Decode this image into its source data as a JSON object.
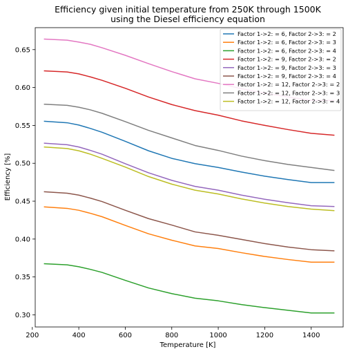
{
  "chart_data": {
    "type": "line",
    "title": "Efficiency given initial temperature from 250K through 1500K",
    "subtitle": "using the Diesel efficiency equation",
    "xlabel": "Temperature [K]",
    "ylabel": "Efficiency [%]",
    "xlim": [
      212.5,
      1537.5
    ],
    "ylim": [
      0.284,
      0.679
    ],
    "xticks": [
      200,
      400,
      600,
      800,
      1000,
      1200,
      1400
    ],
    "xtick_labels": [
      "200",
      "400",
      "600",
      "800",
      "1000",
      "1200",
      "1400"
    ],
    "yticks": [
      0.3,
      0.35,
      0.4,
      0.45,
      0.5,
      0.55,
      0.6,
      0.65
    ],
    "ytick_labels": [
      "0.30",
      "0.35",
      "0.40",
      "0.45",
      "0.50",
      "0.55",
      "0.60",
      "0.65"
    ],
    "grid": false,
    "legend_position": "top-right",
    "x": [
      250,
      350,
      400,
      450,
      500,
      600,
      700,
      800,
      900,
      1000,
      1100,
      1200,
      1300,
      1400,
      1500
    ],
    "series": [
      {
        "name": "Factor 1->2: = 6, Factor 2->3: = 2",
        "color": "#1f77b4",
        "values": [
          0.5555,
          0.5535,
          0.5505,
          0.546,
          0.541,
          0.529,
          0.5165,
          0.5065,
          0.4995,
          0.4945,
          0.4885,
          0.483,
          0.4785,
          0.4745,
          0.4745
        ]
      },
      {
        "name": "Factor 1->2: = 6, Factor 2->3: = 3",
        "color": "#ff7f0e",
        "values": [
          0.4425,
          0.4405,
          0.438,
          0.434,
          0.4295,
          0.418,
          0.407,
          0.3985,
          0.391,
          0.3875,
          0.382,
          0.377,
          0.373,
          0.3695,
          0.3695
        ]
      },
      {
        "name": "Factor 1->2: = 6, Factor 2->3: = 4",
        "color": "#2ca02c",
        "values": [
          0.3675,
          0.366,
          0.3635,
          0.36,
          0.356,
          0.3455,
          0.3355,
          0.328,
          0.322,
          0.3185,
          0.3135,
          0.3095,
          0.306,
          0.3025,
          0.3025
        ]
      },
      {
        "name": "Factor 1->2: = 9, Factor 2->3: = 2",
        "color": "#d62728",
        "values": [
          0.622,
          0.6205,
          0.618,
          0.614,
          0.6095,
          0.599,
          0.5875,
          0.5775,
          0.5695,
          0.5635,
          0.556,
          0.55,
          0.5445,
          0.5395,
          0.537
        ]
      },
      {
        "name": "Factor 1->2: = 9, Factor 2->3: = 3",
        "color": "#9467bd",
        "values": [
          0.5265,
          0.5245,
          0.5215,
          0.517,
          0.512,
          0.4995,
          0.4875,
          0.4775,
          0.4695,
          0.4645,
          0.458,
          0.4525,
          0.448,
          0.444,
          0.443
        ]
      },
      {
        "name": "Factor 1->2: = 9, Factor 2->3: = 4",
        "color": "#8c564b",
        "values": [
          0.4625,
          0.4605,
          0.458,
          0.454,
          0.4495,
          0.438,
          0.427,
          0.4185,
          0.4095,
          0.405,
          0.3995,
          0.394,
          0.3895,
          0.386,
          0.3845
        ]
      },
      {
        "name": "Factor 1->2: = 12, Factor 2->3: = 2",
        "color": "#e377c2",
        "values": [
          0.664,
          0.6625,
          0.66,
          0.657,
          0.6525,
          0.6425,
          0.6315,
          0.621,
          0.6115,
          0.6055,
          0.5985,
          0.5925,
          0.5875,
          0.583,
          0.583
        ]
      },
      {
        "name": "Factor 1->2: = 12, Factor 2->3: = 3",
        "color": "#7f7f7f",
        "values": [
          0.578,
          0.5765,
          0.574,
          0.5705,
          0.566,
          0.555,
          0.5435,
          0.5335,
          0.5235,
          0.517,
          0.5095,
          0.5035,
          0.4985,
          0.4945,
          0.4905
        ]
      },
      {
        "name": "Factor 1->2: = 12, Factor 2->3: = 4",
        "color": "#bcbd22",
        "values": [
          0.5215,
          0.5195,
          0.5165,
          0.512,
          0.5065,
          0.495,
          0.4825,
          0.4725,
          0.4645,
          0.4595,
          0.453,
          0.4475,
          0.443,
          0.4395,
          0.4375
        ]
      }
    ]
  }
}
